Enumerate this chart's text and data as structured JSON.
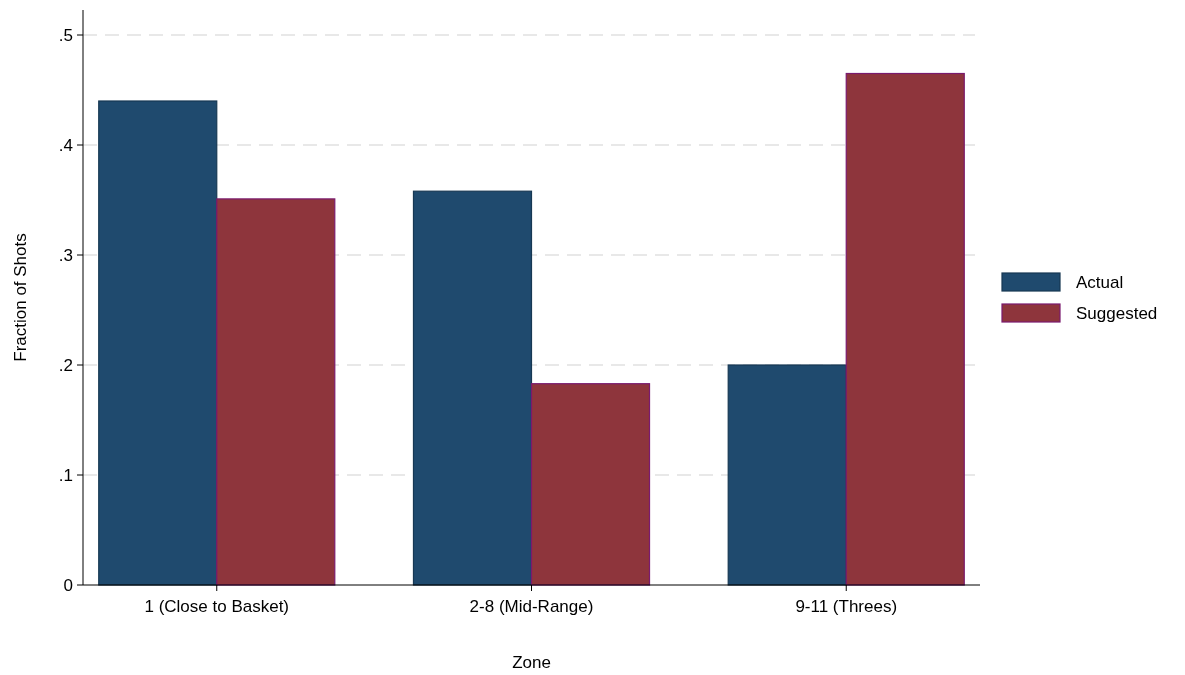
{
  "chart_data": {
    "type": "bar",
    "xlabel": "Zone",
    "ylabel": "Fraction of Shots",
    "categories": [
      "1 (Close to Basket)",
      "2-8 (Mid-Range)",
      "9-11 (Threes)"
    ],
    "series": [
      {
        "name": "Actual",
        "color": "#1f4a6e",
        "values": [
          0.44,
          0.358,
          0.2
        ]
      },
      {
        "name": "Suggested",
        "color": "#8e353c",
        "values": [
          0.351,
          0.183,
          0.465
        ]
      }
    ],
    "ylim": [
      0,
      0.5
    ],
    "yticks": [
      {
        "value": 0,
        "label": "0"
      },
      {
        "value": 0.1,
        "label": ".1"
      },
      {
        "value": 0.2,
        "label": ".2"
      },
      {
        "value": 0.3,
        "label": ".3"
      },
      {
        "value": 0.4,
        "label": ".4"
      },
      {
        "value": 0.5,
        "label": ".5"
      }
    ],
    "grid": "y",
    "legend": "right"
  }
}
